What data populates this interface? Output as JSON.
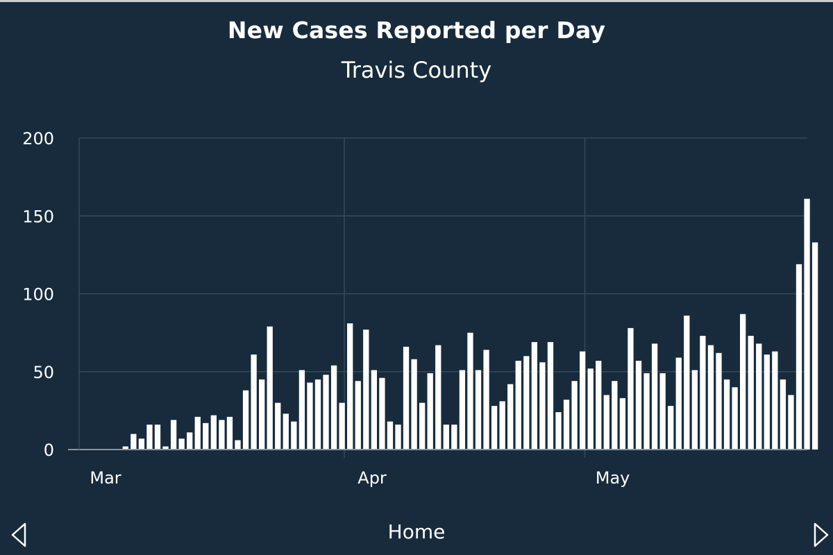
{
  "chart_data": {
    "type": "bar",
    "title": "New Cases Reported per Day",
    "subtitle": "Travis County",
    "xlabel": "",
    "ylabel": "",
    "ylim": [
      0,
      200
    ],
    "yticks": [
      0,
      50,
      100,
      150,
      200
    ],
    "xticks": [
      {
        "label": "Mar",
        "index": 0
      },
      {
        "label": "Apr",
        "index": 31
      },
      {
        "label": "May",
        "index": 61
      }
    ],
    "x_start": "Mar 1",
    "grid": true,
    "bar_color": "#ffffff",
    "values": [
      0,
      0,
      0,
      2,
      10,
      7,
      16,
      16,
      2,
      19,
      7,
      11,
      21,
      17,
      22,
      19,
      21,
      6,
      38,
      61,
      45,
      79,
      30,
      23,
      18,
      51,
      43,
      45,
      48,
      54,
      30,
      81,
      44,
      77,
      51,
      46,
      18,
      16,
      66,
      58,
      30,
      49,
      67,
      16,
      16,
      51,
      75,
      51,
      64,
      28,
      31,
      42,
      57,
      60,
      69,
      56,
      69,
      24,
      32,
      44,
      63,
      52,
      57,
      35,
      44,
      33,
      78,
      57,
      49,
      68,
      49,
      28,
      59,
      86,
      51,
      73,
      67,
      62,
      45,
      40,
      87,
      73,
      68,
      61,
      63,
      45,
      35,
      119,
      161,
      133
    ]
  },
  "colors": {
    "background": "#172b3c",
    "grid": "#344a5c",
    "axis": "#8a98a4",
    "bar": "#ffffff",
    "text": "#ffffff"
  },
  "nav": {
    "label": "Home",
    "prev_icon": "triangle-left-icon",
    "next_icon": "triangle-right-icon"
  }
}
